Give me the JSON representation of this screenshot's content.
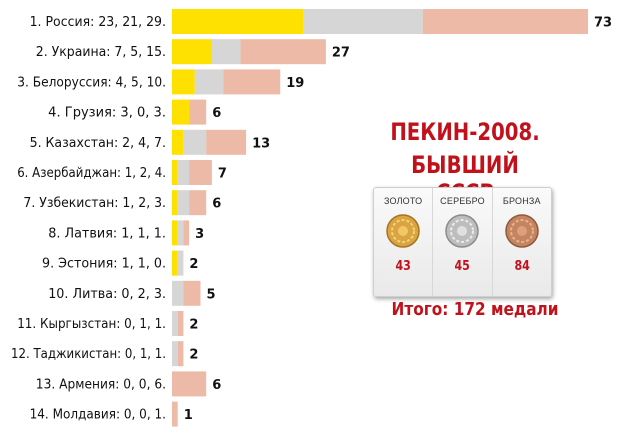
{
  "title_line1": "ПЕКИН-2008.",
  "title_line2": "БЫВШИЙ СССР",
  "medals": [
    {
      "name": "ЗОЛОТО",
      "count": "43",
      "icon": "gold-medal-icon"
    },
    {
      "name": "СЕРЕБРО",
      "count": "45",
      "icon": "silver-medal-icon"
    },
    {
      "name": "БРОНЗА",
      "count": "84",
      "icon": "bronze-medal-icon"
    }
  ],
  "total_text": "Итого: 172 медали",
  "colors": {
    "gold": "#ffe100",
    "silver": "#d6d6d6",
    "bronze": "#ecbaa6",
    "accent": "#c1121c"
  },
  "chart_data": {
    "type": "bar",
    "orientation": "horizontal",
    "stacked": true,
    "categories": [
      "1. Россия: 23, 21, 29.",
      "2. Украина: 7, 5, 15.",
      "3. Белоруссия: 4, 5, 10.",
      "4. Грузия: 3, 0, 3.",
      "5. Казахстан: 2, 4, 7.",
      "6. Азербайджан: 1, 2, 4.",
      "7. Узбекистан: 1, 2, 3.",
      "8. Латвия: 1, 1, 1.",
      "9. Эстония: 1, 1, 0.",
      "10. Литва: 0, 2, 3.",
      "11. Кыргызстан: 0, 1, 1.",
      "12. Таджикистан: 0, 1, 1.",
      "13. Армения: 0, 0, 6.",
      "14. Молдавия: 0, 0, 1."
    ],
    "series": [
      {
        "values": [
          23,
          7,
          4,
          3,
          2,
          1,
          1,
          1,
          1,
          0,
          0,
          0,
          0,
          0
        ]
      },
      {
        "values": [
          21,
          5,
          5,
          0,
          4,
          2,
          2,
          1,
          1,
          2,
          1,
          1,
          0,
          0
        ]
      },
      {
        "values": [
          29,
          15,
          10,
          3,
          7,
          4,
          3,
          1,
          0,
          3,
          1,
          1,
          6,
          1
        ]
      }
    ],
    "totals": [
      "73",
      "27",
      "19",
      "6",
      "13",
      "7",
      "6",
      "3",
      "2",
      "5",
      "2",
      "2",
      "6",
      "1"
    ],
    "xlim": [
      0,
      73
    ],
    "title": "",
    "xlabel": "",
    "ylabel": "",
    "grid": false,
    "legend": "none"
  }
}
